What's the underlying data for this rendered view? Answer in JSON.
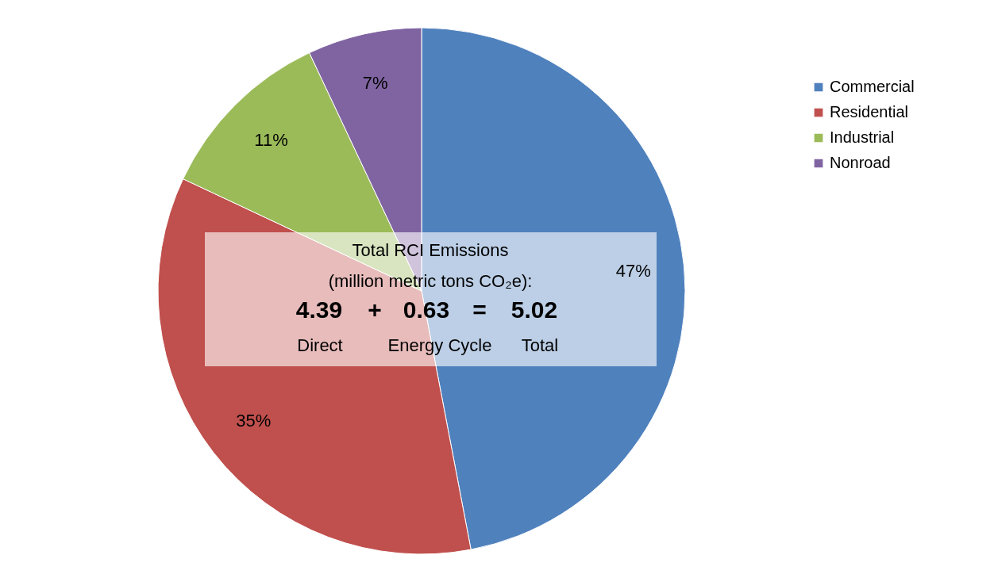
{
  "chart_data": {
    "type": "pie",
    "categories": [
      "Commercial",
      "Residential",
      "Industrial",
      "Nonroad"
    ],
    "values": [
      47,
      35,
      11,
      7
    ],
    "colors": [
      "#4f81bd",
      "#c0504d",
      "#9bbb59",
      "#8064a2"
    ],
    "value_labels": [
      "47%",
      "35%",
      "11%",
      "7%"
    ],
    "legend": "top right",
    "annotations": [
      "Total RCI Emissions",
      "(million metric tons CO₂e):",
      "4.39",
      "+",
      "0.63",
      "=",
      "5.02",
      "Direct",
      "Energy Cycle",
      "Total"
    ]
  }
}
